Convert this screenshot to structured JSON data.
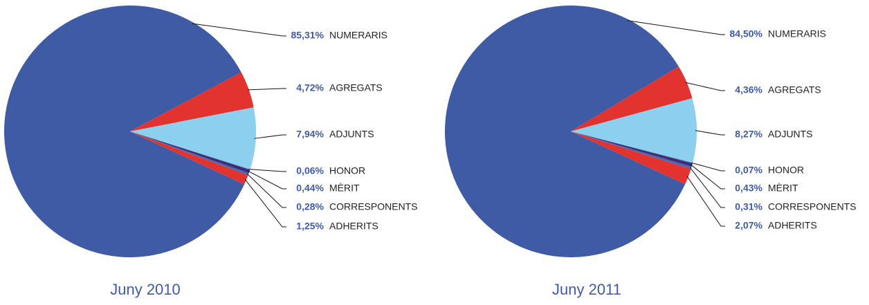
{
  "chart_data": [
    {
      "type": "pie",
      "title": "Juny 2010",
      "categories": [
        "NUMERARIS",
        "AGREGATS",
        "ADJUNTS",
        "HONOR",
        "MÈRIT",
        "CORRESPONENTS",
        "ADHERITS"
      ],
      "values": [
        85.31,
        4.72,
        7.94,
        0.06,
        0.44,
        0.28,
        1.25
      ],
      "value_labels": [
        "85,31%",
        "4,72%",
        "7,94%",
        "0,06%",
        "0,44%",
        "0,28%",
        "1,25%"
      ],
      "colors": [
        "#3f5ba6",
        "#e2332e",
        "#8ccfee",
        "#3f5ba6",
        "#3a2f7a",
        "#4a68b4",
        "#e2332e"
      ]
    },
    {
      "type": "pie",
      "title": "Juny 2011",
      "categories": [
        "NUMERARIS",
        "AGREGATS",
        "ADJUNTS",
        "HONOR",
        "MÈRIT",
        "CORRESPONENTS",
        "ADHERITS"
      ],
      "values": [
        84.5,
        4.36,
        8.27,
        0.07,
        0.43,
        0.31,
        2.07
      ],
      "value_labels": [
        "84,50%",
        "4,36%",
        "8,27%",
        "0,07%",
        "0,43%",
        "0,31%",
        "2,07%"
      ],
      "colors": [
        "#3f5ba6",
        "#e2332e",
        "#8ccfee",
        "#3f5ba6",
        "#3a2f7a",
        "#4a68b4",
        "#e2332e"
      ]
    }
  ]
}
